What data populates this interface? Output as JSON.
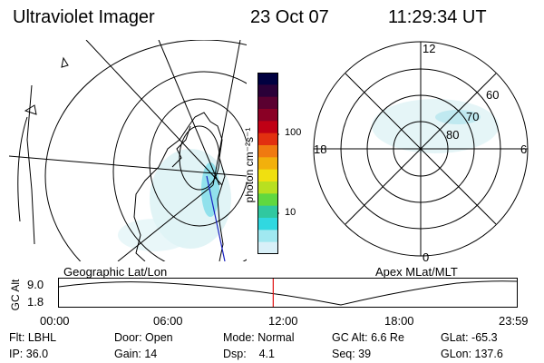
{
  "header": {
    "instrument": "Ultraviolet Imager",
    "date": "23 Oct 07",
    "time": "11:29:34 UT"
  },
  "colorbar": {
    "label": "photon cm⁻²s⁻¹",
    "ticks": [
      "100",
      "10"
    ],
    "colors": [
      "#000040",
      "#2a0038",
      "#5a0030",
      "#8a0025",
      "#c00015",
      "#e23010",
      "#f07a10",
      "#f2b00c",
      "#f0e010",
      "#b8e020",
      "#60d840",
      "#30c8a0",
      "#30d8e0",
      "#a0e8f0",
      "#d8f0f8"
    ]
  },
  "left_panel": {
    "label": "Geographic Lat/Lon"
  },
  "right_panel": {
    "label": "Apex MLat/MLT",
    "mlt_labels": [
      "12",
      "18",
      "6",
      "0"
    ],
    "lat_labels": [
      "60",
      "70",
      "80"
    ]
  },
  "timeline": {
    "axis_label": "GC Alt",
    "y_ticks": [
      "9.0",
      "1.8"
    ],
    "x_ticks": [
      "00:00",
      "06:00",
      "12:00",
      "18:00",
      "23:59"
    ],
    "current_time_fraction": 0.468
  },
  "info": {
    "flt": "Flt: LBHL",
    "ip": "IP: 36.0",
    "door": "Door: Open",
    "gain": "Gain: 14",
    "mode": "Mode: Normal",
    "dsp": "Dsp:    4.1",
    "gc_alt": "GC Alt: 6.6 Re",
    "seq": "Seq: 39",
    "glat": "GLat: -65.3",
    "glon": "GLon: 137.6"
  }
}
